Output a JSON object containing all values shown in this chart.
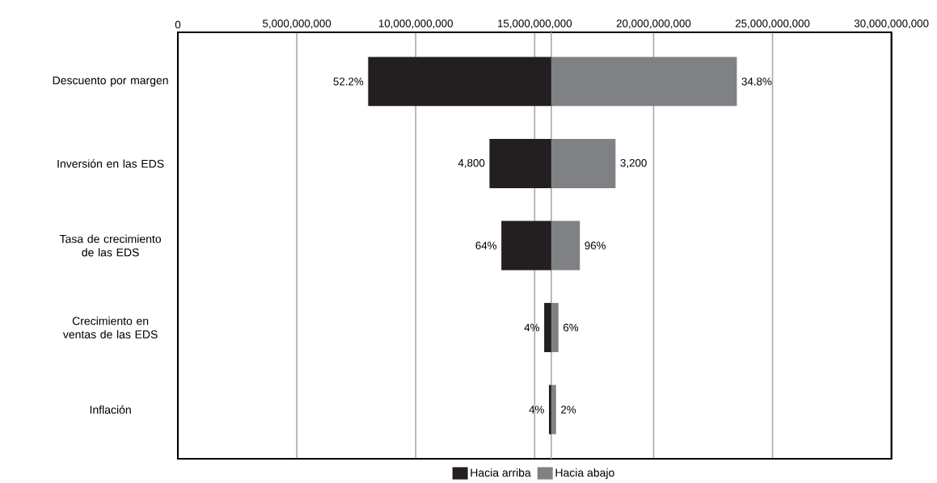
{
  "chart_data": {
    "type": "bar",
    "orientation": "horizontal",
    "categories": [
      "Descuento por margen",
      "Inversión en las EDS",
      "Tasa de crecimiento de las EDS",
      "Crecimiento en ventas de las EDS",
      "Inflación"
    ],
    "series": [
      {
        "name": "Hacia arriba",
        "color": "#231f20",
        "base": [
          8000000000,
          13100000000,
          13600000000,
          15400000000,
          15600000000
        ],
        "values": [
          7700000000,
          2600000000,
          2100000000,
          300000000,
          100000000
        ]
      },
      {
        "name": "Hacia abajo",
        "color": "#808184",
        "base": [
          15700000000,
          15700000000,
          15700000000,
          15700000000,
          15700000000
        ],
        "values": [
          7800000000,
          2700000000,
          1200000000,
          300000000,
          200000000
        ]
      }
    ],
    "annotations": [
      "52.2%",
      "34.8%",
      "4,800",
      "3,200",
      "64%",
      "96%",
      "4%",
      "6%",
      "4%",
      "2%"
    ],
    "xlim": [
      0,
      30000000000
    ],
    "xticks": [
      0,
      {
        "value": 5000000000,
        "label": "5,000,000,000"
      },
      {
        "value": 10000000000,
        "label": "10,000,000,000"
      },
      {
        "value": 15000000000,
        "label": "15,000,000,000"
      },
      {
        "value": 20000000000,
        "label": "20,000,000,000"
      },
      {
        "value": 25000000000,
        "label": "25,000,000,000"
      },
      {
        "value": 30000000000,
        "label": "30,000,000,000"
      }
    ],
    "ref_lines": [
      {
        "axis": "x",
        "value": 15700000000,
        "color": "#a7a9ac"
      }
    ],
    "grid": "x",
    "legend": "bottom"
  }
}
